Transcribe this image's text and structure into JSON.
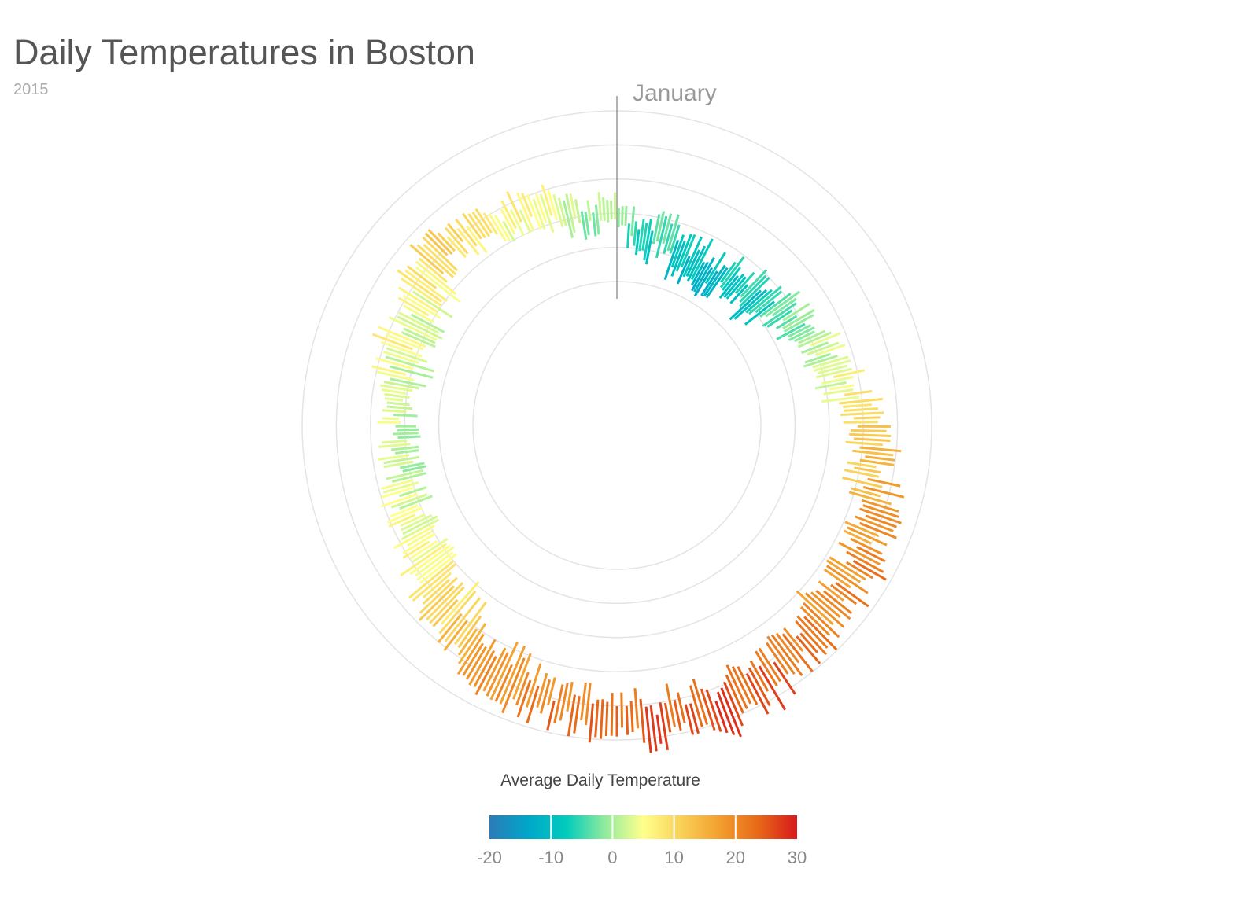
{
  "header": {
    "title": "Daily Temperatures in Boston",
    "subtitle": "2015"
  },
  "chart_data": {
    "type": "radial-bar",
    "title": "Daily Temperatures in Boston",
    "subtitle": "2015",
    "start_label": "January",
    "radial_scale": {
      "domain": [
        -20,
        30
      ],
      "ring_values": [
        -20,
        -10,
        0,
        10,
        20,
        30
      ]
    },
    "x": "day of year (1-365), clockwise from top",
    "series_fields": [
      "day",
      "min",
      "max",
      "avg"
    ],
    "weekly_min_max": [
      [
        -4,
        2
      ],
      [
        -12,
        -2
      ],
      [
        -10,
        0
      ],
      [
        -16,
        -4
      ],
      [
        -15,
        -5
      ],
      [
        -14,
        -5
      ],
      [
        -12,
        -3
      ],
      [
        -13,
        -2
      ],
      [
        -8,
        2
      ],
      [
        -5,
        3
      ],
      [
        -3,
        6
      ],
      [
        -1,
        8
      ],
      [
        2,
        12
      ],
      [
        5,
        15
      ],
      [
        8,
        18
      ],
      [
        10,
        20
      ],
      [
        12,
        22
      ],
      [
        14,
        26
      ],
      [
        14,
        25
      ],
      [
        13,
        25
      ],
      [
        17,
        27
      ],
      [
        18,
        30
      ],
      [
        18,
        31
      ],
      [
        20,
        32
      ],
      [
        19,
        30
      ],
      [
        19,
        30
      ],
      [
        18,
        28
      ],
      [
        17,
        27
      ],
      [
        16,
        27
      ],
      [
        12,
        26
      ],
      [
        10,
        25
      ],
      [
        8,
        20
      ],
      [
        4,
        17
      ],
      [
        1,
        14
      ],
      [
        -1,
        12
      ],
      [
        0,
        10
      ],
      [
        -2,
        7
      ],
      [
        -3,
        6
      ],
      [
        -4,
        5
      ],
      [
        -2,
        4
      ],
      [
        0,
        6
      ],
      [
        -2,
        8
      ],
      [
        -2,
        12
      ],
      [
        -2,
        9
      ],
      [
        0,
        12
      ],
      [
        2,
        15
      ],
      [
        6,
        14
      ],
      [
        4,
        12
      ],
      [
        2,
        10
      ],
      [
        -1,
        9
      ],
      [
        -2,
        9
      ],
      [
        -4,
        3
      ]
    ],
    "legend": {
      "title": "Average Daily Temperature",
      "ticks": [
        "-20",
        "-10",
        "0",
        "10",
        "20",
        "30"
      ],
      "domain": [
        -20,
        30
      ],
      "colors": [
        "#2c7bb6",
        "#00a6ca",
        "#00ccbc",
        "#90eb9d",
        "#ffff8c",
        "#f9d057",
        "#f29e2e",
        "#e76818",
        "#d7191c"
      ]
    }
  }
}
